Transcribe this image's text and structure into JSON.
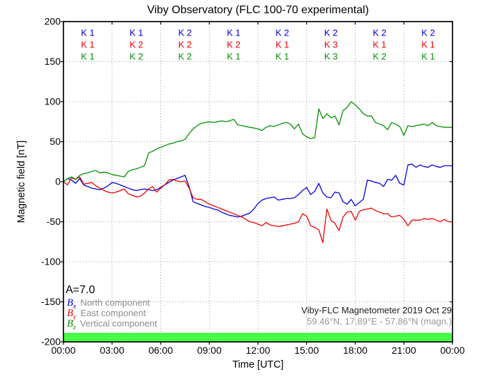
{
  "title": "Viby Observatory (FLC 100-70 experimental)",
  "axes": {
    "xlabel": "Time [UTC]",
    "ylabel": "Magnetic field [nT]",
    "x_tick_labels": [
      "00:00",
      "03:00",
      "06:00",
      "09:00",
      "12:00",
      "15:00",
      "18:00",
      "21:00",
      "00:00"
    ],
    "y_tick_labels": [
      "200",
      "150",
      "100",
      "50",
      "0",
      "-50",
      "-100",
      "-150",
      "-200"
    ]
  },
  "k_index": {
    "rows": [
      {
        "component": "Bx",
        "color": "#0000dd",
        "values": [
          "K 1",
          "K 1",
          "K 2",
          "K 1",
          "K 2",
          "K 2",
          "K 2",
          "K 2"
        ]
      },
      {
        "component": "By",
        "color": "#ee0000",
        "values": [
          "K 1",
          "K 2",
          "K 2",
          "K 2",
          "K 1",
          "K 3",
          "K 1",
          "K 1"
        ]
      },
      {
        "component": "Bz",
        "color": "#009000",
        "values": [
          "K 1",
          "K 2",
          "K 2",
          "K 1",
          "K 1",
          "K 3",
          "K 2",
          "K 1"
        ]
      }
    ]
  },
  "annotations": {
    "a_index": "A=7.0",
    "info_line1": "Viby-FLC Magnetometer 2019 Oct 29",
    "info_line2": "59.46°N, 17.89°E - 57.86°N (magn.)"
  },
  "legend": {
    "items": [
      {
        "symbol": "B",
        "sub": "x",
        "label": "North component",
        "color": "#0000dd"
      },
      {
        "symbol": "B",
        "sub": "y",
        "label": "East component",
        "color": "#ee0000"
      },
      {
        "symbol": "B",
        "sub": "z",
        "label": "Vertical component",
        "color": "#009000"
      }
    ]
  },
  "activity_bar_color": "#47ff47",
  "chart_data": {
    "type": "line",
    "title": "Viby Observatory (FLC 100-70 experimental)",
    "xlabel": "Time [UTC]",
    "ylabel": "Magnetic field [nT]",
    "xlim_hours": [
      0,
      24
    ],
    "ylim": [
      -200,
      200
    ],
    "x_ticks_hours": [
      0,
      3,
      6,
      9,
      12,
      15,
      18,
      21,
      24
    ],
    "y_ticks": [
      -200,
      -150,
      -100,
      -50,
      0,
      50,
      100,
      150,
      200
    ],
    "grid": "dotted",
    "x_step_hours": 0.25,
    "series": [
      {
        "name": "Bx North component",
        "data_name": "bx-north-line",
        "color": "#0000dd",
        "values": [
          0,
          4,
          2,
          -2,
          4,
          -4,
          -6,
          -8,
          -9,
          -10,
          -8,
          -5,
          -1,
          -2,
          -4,
          -6,
          -8,
          -10,
          -11,
          -10,
          -9,
          -10,
          -11,
          -10,
          -7,
          -4,
          -1,
          2,
          4,
          6,
          8,
          -6,
          -25,
          -27,
          -29,
          -31,
          -32,
          -34,
          -35,
          -38,
          -40,
          -42,
          -43,
          -44,
          -43,
          -41,
          -39,
          -34,
          -27,
          -23,
          -21,
          -20,
          -19,
          -23,
          -22,
          -21,
          -21,
          -20,
          -16,
          -11,
          -7,
          -16,
          -12,
          -2,
          -14,
          -19,
          -20,
          -13,
          -14,
          -25,
          -28,
          -22,
          -30,
          -26,
          -22,
          2,
          1,
          -1,
          -2,
          -6,
          3,
          2,
          8,
          -2,
          -4,
          21,
          22,
          18,
          21,
          19,
          18,
          21,
          19,
          18,
          20,
          20,
          20
        ]
      },
      {
        "name": "By East component",
        "data_name": "by-east-line",
        "color": "#ee0000",
        "values": [
          0,
          -4,
          5,
          3,
          6,
          -3,
          -2,
          -1,
          -5,
          -8,
          -11,
          -13,
          -14,
          -13,
          -11,
          -9,
          -15,
          -17,
          -19,
          -18,
          -14,
          -9,
          -6,
          -13,
          -8,
          -4,
          2,
          3,
          1,
          0,
          1,
          -8,
          -20,
          -22,
          -22,
          -25,
          -28,
          -30,
          -32,
          -34,
          -36,
          -38,
          -40,
          -42,
          -44,
          -47,
          -50,
          -51,
          -53,
          -55,
          -51,
          -54,
          -55,
          -56,
          -55,
          -54,
          -53,
          -52,
          -50,
          -40,
          -43,
          -55,
          -57,
          -60,
          -76,
          -34,
          -48,
          -52,
          -61,
          -44,
          -38,
          -37,
          -48,
          -37,
          -35,
          -34,
          -33,
          -36,
          -38,
          -40,
          -40,
          -44,
          -43,
          -42,
          -47,
          -55,
          -48,
          -48,
          -48,
          -46,
          -47,
          -46,
          -48,
          -50,
          -47,
          -50,
          -50
        ]
      },
      {
        "name": "Bz Vertical component",
        "data_name": "bz-vertical-line",
        "color": "#009000",
        "values": [
          0,
          4,
          6,
          3,
          8,
          10,
          11,
          13,
          14,
          11,
          12,
          11,
          9,
          8,
          7,
          6,
          13,
          15,
          16,
          18,
          20,
          36,
          38,
          41,
          43,
          45,
          47,
          48,
          50,
          51,
          53,
          60,
          66,
          70,
          73,
          74,
          75,
          74,
          75,
          76,
          75,
          76,
          78,
          71,
          70,
          69,
          68,
          67,
          66,
          64,
          68,
          70,
          69,
          71,
          73,
          74,
          72,
          66,
          72,
          60,
          56,
          54,
          55,
          91,
          79,
          85,
          80,
          82,
          71,
          89,
          93,
          100,
          96,
          91,
          85,
          82,
          82,
          74,
          72,
          70,
          65,
          74,
          72,
          69,
          58,
          70,
          69,
          70,
          71,
          72,
          70,
          74,
          70,
          69,
          68,
          68,
          68
        ]
      }
    ]
  }
}
